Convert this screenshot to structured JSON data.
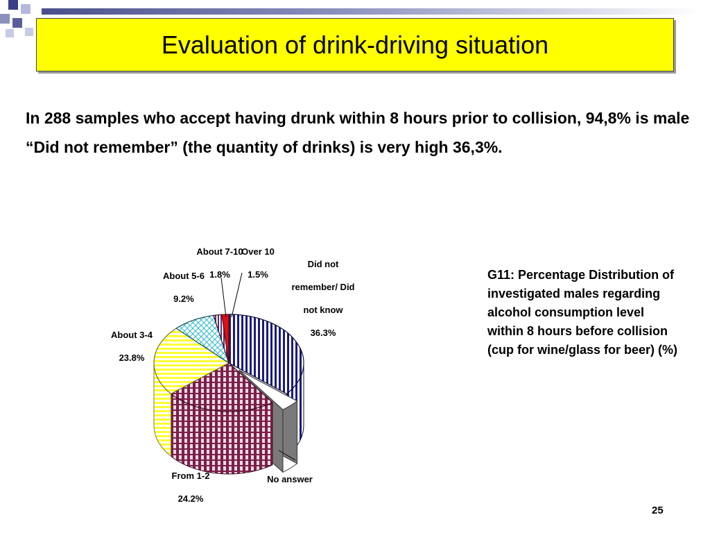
{
  "slide": {
    "title": "Evaluation of drink-driving situation",
    "intro_lines": [
      "In 288 samples who accept having drunk within 8 hours prior to collision, 94,8% is male",
      "“Did not remember” (the quantity of drinks) is very high 36,3%."
    ],
    "caption": "G11: Percentage Distribution of investigated males regarding alcohol consumption level within 8 hours before collision (cup for wine/glass for beer) (%)",
    "page_number": "25"
  },
  "colors": {
    "title_background": "#ffff00",
    "did_not_remember": "#1a1a7a",
    "no_answer": "#8c8c8c",
    "from_1_2": "#7a1f4a",
    "about_3_4": "#ffff33",
    "about_5_6": "#30b8c8",
    "about_7_10": "#5a2a7a",
    "over_10": "#e01010"
  },
  "chart_data": {
    "type": "pie",
    "title": "",
    "legend": "none",
    "slices": [
      {
        "key": "did_not_remember",
        "label_lines": [
          "Did not",
          "remember/ Did",
          "not know"
        ],
        "value": 36.3,
        "value_label": "36.3%",
        "exploded": false
      },
      {
        "key": "no_answer",
        "label_lines": [
          "No answer"
        ],
        "value": 4.2,
        "value_label": "",
        "exploded": true
      },
      {
        "key": "from_1_2",
        "label_lines": [
          "From 1-2"
        ],
        "value": 24.2,
        "value_label": "24.2%",
        "exploded": false
      },
      {
        "key": "about_3_4",
        "label_lines": [
          "About 3-4"
        ],
        "value": 23.8,
        "value_label": "23.8%",
        "exploded": false
      },
      {
        "key": "about_5_6",
        "label_lines": [
          "About 5-6"
        ],
        "value": 9.2,
        "value_label": "9.2%",
        "exploded": false
      },
      {
        "key": "about_7_10",
        "label_lines": [
          "About 7-10"
        ],
        "value": 1.8,
        "value_label": "1.8%",
        "exploded": false
      },
      {
        "key": "over_10",
        "label_lines": [
          "Over 10"
        ],
        "value": 1.5,
        "value_label": "1.5%",
        "exploded": false
      }
    ]
  }
}
